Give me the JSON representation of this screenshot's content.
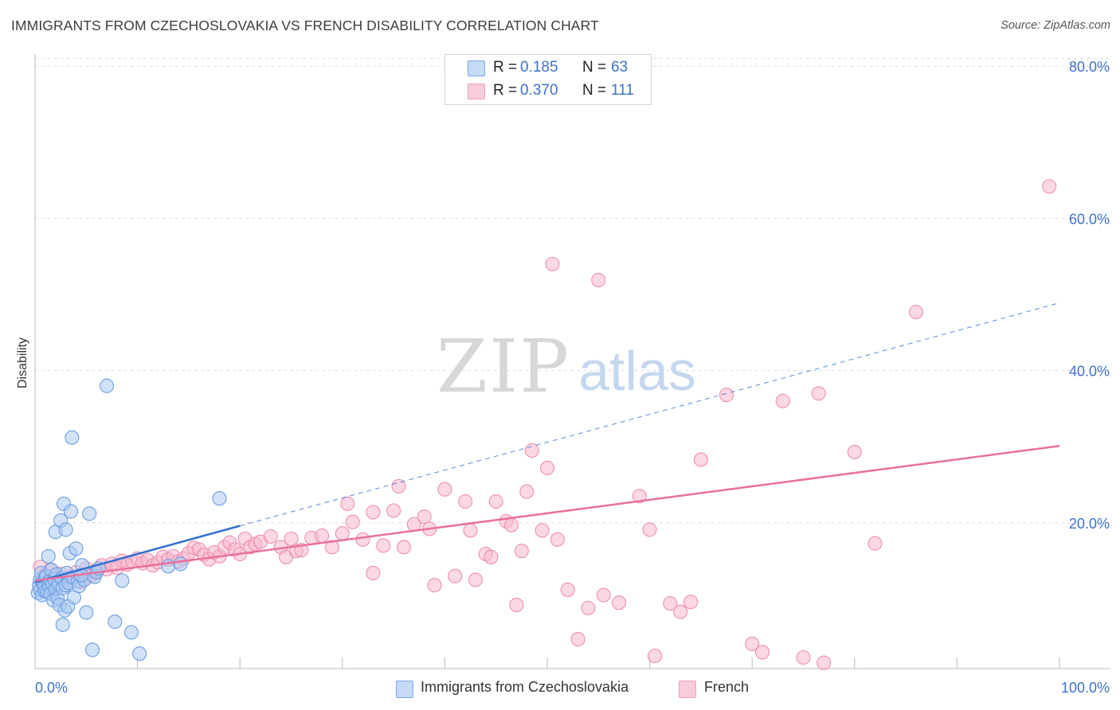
{
  "title": "IMMIGRANTS FROM CZECHOSLOVAKIA VS FRENCH DISABILITY CORRELATION CHART",
  "source": "Source: ZipAtlas.com",
  "watermark": {
    "zip": "ZIP",
    "atlas": "atlas"
  },
  "colors": {
    "blue_fill": "#a9c9f2",
    "blue_stroke": "#6f9fe0",
    "blue_line": "#3370d1",
    "pink_fill": "#f7b8cd",
    "pink_stroke": "#ec8fb0",
    "pink_line": "#e8719d",
    "tick_text": "#3e72c6",
    "grid": "#dddddd"
  },
  "legend_top": [
    {
      "r_label": "R =",
      "r_value": "0.185",
      "n_label": "N =",
      "n_value": "63",
      "series": "blue"
    },
    {
      "r_label": "R =",
      "r_value": "0.370",
      "n_label": "N =",
      "n_value": "111",
      "series": "pink"
    }
  ],
  "chart_data": {
    "type": "scatter",
    "title": "IMMIGRANTS FROM CZECHOSLOVAKIA VS FRENCH DISABILITY CORRELATION CHART",
    "xlabel": "",
    "ylabel": "Disability",
    "xlim": [
      0,
      100
    ],
    "ylim": [
      0,
      85
    ],
    "x_tick_labels": [
      "0.0%",
      "100.0%"
    ],
    "y_ticks": [
      20,
      40,
      60,
      80
    ],
    "y_tick_labels": [
      "20.0%",
      "40.0%",
      "60.0%",
      "80.0%"
    ],
    "grid": true,
    "legend_position": "bottom",
    "series": [
      {
        "name": "Immigrants from Czechoslovakia",
        "color": "#a9c9f2",
        "trend": {
          "x": [
            0,
            20
          ],
          "y": [
            12.2,
            19.6
          ],
          "extended_to": [
            100,
            48.9
          ]
        },
        "points": [
          [
            0.3,
            10.8
          ],
          [
            0.4,
            11.8
          ],
          [
            0.5,
            12.5
          ],
          [
            0.5,
            11.2
          ],
          [
            0.6,
            13.4
          ],
          [
            0.7,
            10.5
          ],
          [
            0.8,
            12.0
          ],
          [
            0.9,
            11.5
          ],
          [
            1.0,
            12.8
          ],
          [
            1.0,
            11.0
          ],
          [
            1.1,
            13.0
          ],
          [
            1.2,
            10.9
          ],
          [
            1.3,
            12.2
          ],
          [
            1.3,
            15.6
          ],
          [
            1.4,
            11.6
          ],
          [
            1.5,
            12.4
          ],
          [
            1.5,
            10.7
          ],
          [
            1.6,
            13.8
          ],
          [
            1.7,
            11.9
          ],
          [
            1.8,
            9.8
          ],
          [
            1.9,
            12.6
          ],
          [
            2.0,
            18.8
          ],
          [
            2.0,
            11.3
          ],
          [
            2.1,
            13.2
          ],
          [
            2.2,
            10.1
          ],
          [
            2.3,
            12.0
          ],
          [
            2.4,
            9.2
          ],
          [
            2.5,
            20.3
          ],
          [
            2.6,
            12.7
          ],
          [
            2.7,
            11.4
          ],
          [
            2.7,
            6.6
          ],
          [
            2.8,
            22.5
          ],
          [
            2.9,
            8.5
          ],
          [
            3.0,
            19.1
          ],
          [
            3.0,
            11.8
          ],
          [
            3.1,
            13.4
          ],
          [
            3.2,
            9.0
          ],
          [
            3.3,
            12.1
          ],
          [
            3.4,
            16.0
          ],
          [
            3.5,
            21.5
          ],
          [
            3.6,
            31.2
          ],
          [
            3.7,
            12.8
          ],
          [
            3.8,
            10.2
          ],
          [
            4.0,
            16.6
          ],
          [
            4.2,
            12.3
          ],
          [
            4.3,
            11.7
          ],
          [
            4.6,
            14.4
          ],
          [
            4.8,
            12.5
          ],
          [
            5.0,
            8.2
          ],
          [
            5.3,
            21.2
          ],
          [
            5.6,
            3.3
          ],
          [
            5.8,
            12.9
          ],
          [
            6.0,
            13.5
          ],
          [
            6.2,
            14.0
          ],
          [
            7.0,
            38.0
          ],
          [
            4.5,
            13.1
          ],
          [
            7.8,
            7.0
          ],
          [
            8.5,
            12.4
          ],
          [
            9.4,
            5.6
          ],
          [
            10.2,
            2.8
          ],
          [
            13.0,
            14.3
          ],
          [
            18.0,
            23.2
          ],
          [
            14.2,
            14.6
          ]
        ]
      },
      {
        "name": "French",
        "color": "#f7b8cd",
        "trend": {
          "x": [
            0,
            100
          ],
          "y": [
            12.4,
            30.1
          ]
        },
        "points": [
          [
            0.5,
            14.2
          ],
          [
            0.8,
            12.5
          ],
          [
            1.0,
            13.1
          ],
          [
            1.2,
            12.0
          ],
          [
            1.5,
            13.8
          ],
          [
            2.0,
            12.6
          ],
          [
            2.5,
            13.3
          ],
          [
            3.0,
            11.8
          ],
          [
            3.5,
            12.9
          ],
          [
            4.0,
            13.5
          ],
          [
            4.5,
            12.2
          ],
          [
            5.0,
            14.0
          ],
          [
            5.5,
            13.1
          ],
          [
            6.0,
            13.7
          ],
          [
            6.5,
            14.4
          ],
          [
            7.0,
            13.9
          ],
          [
            7.5,
            14.6
          ],
          [
            8.0,
            14.1
          ],
          [
            8.5,
            15.0
          ],
          [
            9.0,
            14.5
          ],
          [
            9.5,
            14.9
          ],
          [
            10.0,
            15.3
          ],
          [
            10.5,
            14.7
          ],
          [
            11.0,
            15.1
          ],
          [
            11.5,
            14.4
          ],
          [
            12.0,
            14.8
          ],
          [
            12.5,
            15.5
          ],
          [
            13.0,
            15.2
          ],
          [
            13.5,
            15.6
          ],
          [
            14.0,
            14.9
          ],
          [
            14.5,
            15.3
          ],
          [
            15.0,
            16.0
          ],
          [
            15.5,
            16.7
          ],
          [
            16.0,
            16.5
          ],
          [
            16.5,
            15.8
          ],
          [
            17.0,
            15.2
          ],
          [
            17.5,
            16.1
          ],
          [
            18.0,
            15.6
          ],
          [
            18.5,
            16.8
          ],
          [
            19.0,
            17.4
          ],
          [
            19.5,
            16.5
          ],
          [
            20.0,
            15.9
          ],
          [
            20.5,
            17.9
          ],
          [
            21.0,
            16.8
          ],
          [
            21.5,
            17.2
          ],
          [
            22.0,
            17.5
          ],
          [
            23.0,
            18.2
          ],
          [
            24.0,
            16.8
          ],
          [
            24.5,
            15.5
          ],
          [
            25.0,
            17.9
          ],
          [
            25.5,
            16.3
          ],
          [
            26.0,
            16.4
          ],
          [
            27.0,
            18.0
          ],
          [
            28.0,
            18.3
          ],
          [
            29.0,
            16.8
          ],
          [
            30.0,
            18.6
          ],
          [
            30.5,
            22.5
          ],
          [
            31.0,
            20.1
          ],
          [
            32.0,
            17.8
          ],
          [
            33.0,
            21.4
          ],
          [
            34.0,
            17.0
          ],
          [
            35.0,
            21.6
          ],
          [
            35.5,
            24.8
          ],
          [
            36.0,
            16.8
          ],
          [
            37.0,
            19.8
          ],
          [
            38.0,
            20.8
          ],
          [
            38.5,
            19.2
          ],
          [
            39.0,
            11.8
          ],
          [
            40.0,
            24.4
          ],
          [
            41.0,
            13.0
          ],
          [
            42.0,
            22.8
          ],
          [
            42.5,
            19.0
          ],
          [
            43.0,
            12.5
          ],
          [
            44.0,
            15.9
          ],
          [
            44.5,
            15.5
          ],
          [
            45.0,
            22.8
          ],
          [
            46.0,
            20.2
          ],
          [
            46.5,
            19.7
          ],
          [
            47.0,
            9.2
          ],
          [
            47.5,
            16.3
          ],
          [
            48.0,
            24.1
          ],
          [
            48.5,
            29.5
          ],
          [
            49.5,
            19.0
          ],
          [
            50.0,
            27.2
          ],
          [
            50.5,
            54.0
          ],
          [
            51.0,
            17.8
          ],
          [
            52.0,
            11.2
          ],
          [
            53.0,
            4.7
          ],
          [
            54.0,
            8.8
          ],
          [
            55.0,
            51.9
          ],
          [
            55.5,
            10.5
          ],
          [
            57.0,
            9.5
          ],
          [
            59.0,
            23.5
          ],
          [
            60.0,
            19.1
          ],
          [
            60.5,
            2.5
          ],
          [
            62.0,
            9.4
          ],
          [
            63.0,
            8.3
          ],
          [
            64.0,
            9.6
          ],
          [
            65.0,
            28.3
          ],
          [
            67.5,
            36.8
          ],
          [
            70.0,
            4.1
          ],
          [
            71.0,
            3.0
          ],
          [
            73.0,
            36.0
          ],
          [
            75.0,
            2.3
          ],
          [
            76.5,
            37.0
          ],
          [
            77.0,
            1.6
          ],
          [
            80.0,
            29.3
          ],
          [
            82.0,
            17.3
          ],
          [
            86.0,
            47.7
          ],
          [
            99.0,
            64.2
          ],
          [
            33.0,
            13.4
          ]
        ]
      }
    ]
  },
  "legend_bottom": [
    {
      "label": "Immigrants from Czechoslovakia",
      "series": "blue"
    },
    {
      "label": "French",
      "series": "pink"
    }
  ]
}
